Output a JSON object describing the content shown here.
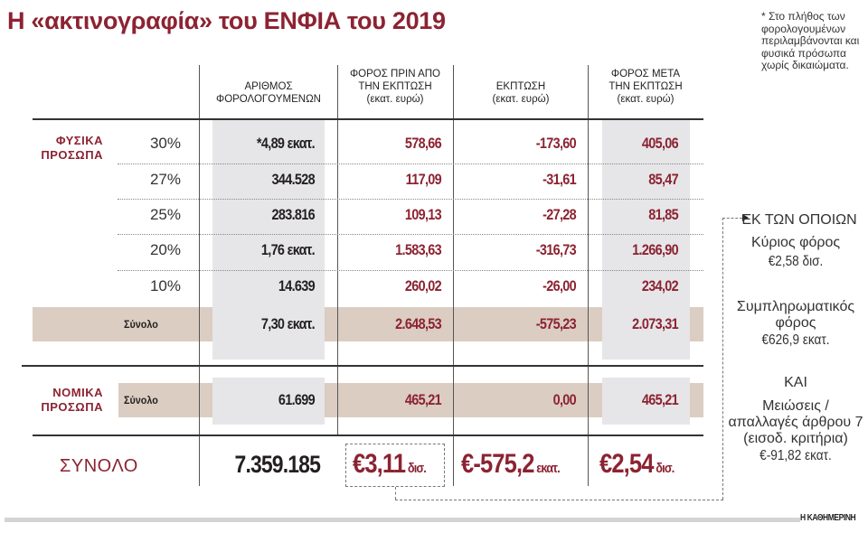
{
  "title": "Η «ακτινογραφία» του ΕΝΦΙΑ του 2019",
  "footnote": "* Στο πλήθος των φορολογουμένων περιλαμβάνονται και φυσικά πρόσωπα χωρίς δικαιώματα.",
  "columns": {
    "taxpayers": {
      "line1": "ΑΡΙΘΜΟΣ",
      "line2": "ΦΟΡΟΛΟΓΟΥΜΕΝΩΝ"
    },
    "tax_before": {
      "line1": "ΦΟΡΟΣ ΠΡΙΝ ΑΠΟ",
      "line2": "ΤΗΝ ΕΚΠΤΩΣΗ",
      "unit": "(εκατ. ευρώ)"
    },
    "discount": {
      "line1": "ΕΚΠΤΩΣΗ",
      "unit": "(εκατ. ευρώ)"
    },
    "tax_after": {
      "line1": "ΦΟΡΟΣ ΜΕΤΑ",
      "line2": "ΤΗΝ ΕΚΠΤΩΣΗ",
      "unit": "(εκατ. ευρώ)"
    }
  },
  "natural_persons": {
    "label_line1": "ΦΥΣΙΚΑ",
    "label_line2": "ΠΡΟΣΩΠΑ",
    "rows": [
      {
        "rate": "30%",
        "taxpayers": "*4,89 εκατ.",
        "tax_before": "578,66",
        "discount": "-173,60",
        "tax_after": "405,06"
      },
      {
        "rate": "27%",
        "taxpayers": "344.528",
        "tax_before": "117,09",
        "discount": "-31,61",
        "tax_after": "85,47"
      },
      {
        "rate": "25%",
        "taxpayers": "283.816",
        "tax_before": "109,13",
        "discount": "-27,28",
        "tax_after": "81,85"
      },
      {
        "rate": "20%",
        "taxpayers": "1,76 εκατ.",
        "tax_before": "1.583,63",
        "discount": "-316,73",
        "tax_after": "1.266,90"
      },
      {
        "rate": "10%",
        "taxpayers": "14.639",
        "tax_before": "260,02",
        "discount": "-26,00",
        "tax_after": "234,02"
      }
    ],
    "total": {
      "label": "Σύνολο",
      "taxpayers": "7,30 εκατ.",
      "tax_before": "2.648,53",
      "discount": "-575,23",
      "tax_after": "2.073,31"
    }
  },
  "legal_persons": {
    "label_line1": "ΝΟΜΙΚΑ",
    "label_line2": "ΠΡΟΣΩΠΑ",
    "total": {
      "label": "Σύνολο",
      "taxpayers": "61.699",
      "tax_before": "465,21",
      "discount": "0,00",
      "tax_after": "465,21"
    }
  },
  "grand_total": {
    "label": "ΣΥΝΟΛΟ",
    "taxpayers": "7.359.185",
    "tax_before": {
      "value": "€3,11",
      "unit": "δισ."
    },
    "discount": {
      "value": "€-575,2",
      "unit": "εκατ."
    },
    "tax_after": {
      "value": "€2,54",
      "unit": "δισ."
    }
  },
  "breakdown": {
    "heading": "ΕΚ ΤΩΝ ΟΠΟΙΩΝ",
    "main_tax": {
      "label": "Κύριος φόρος",
      "value": "€2,58",
      "unit": "δισ."
    },
    "supplementary_tax": {
      "label_line1": "Συμπληρωματικός",
      "label_line2": "φόρος",
      "value": "€626,9",
      "unit": "εκατ."
    },
    "and_label": "ΚΑΙ",
    "reductions": {
      "label_line1": "Μειώσεις /",
      "label_line2": "απαλλαγές άρθρου 7",
      "label_line3": "(εισοδ. κριτήρια)",
      "value": "€-91,82",
      "unit": "εκατ."
    }
  },
  "brand": "Η ΚΑΘΗΜΕΡΙΝΗ",
  "colors": {
    "accent": "#8c2332",
    "grey_shade": "#e6e6e8",
    "beige_shade": "#dbcdc2",
    "side_values": "#8a8a8a"
  }
}
